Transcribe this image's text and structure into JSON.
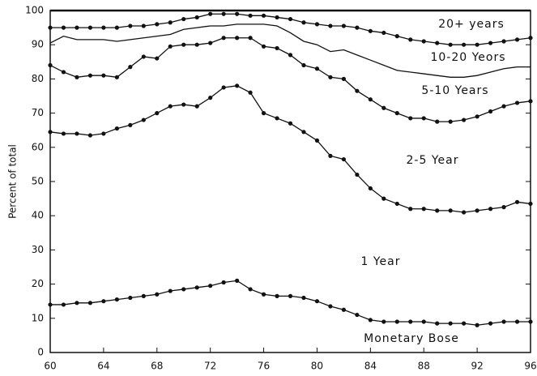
{
  "chart_data": {
    "type": "line",
    "y_label": "Percent of total",
    "x": [
      60,
      61,
      62,
      63,
      64,
      65,
      66,
      67,
      68,
      69,
      70,
      71,
      72,
      73,
      74,
      75,
      76,
      77,
      78,
      79,
      80,
      81,
      82,
      83,
      84,
      85,
      86,
      87,
      88,
      89,
      90,
      91,
      92,
      93,
      94,
      95,
      96
    ],
    "xlim": [
      60,
      96
    ],
    "xticks": [
      60,
      64,
      68,
      72,
      76,
      80,
      84,
      88,
      92,
      96
    ],
    "ylim": [
      0,
      100
    ],
    "yticks": [
      0,
      10,
      20,
      30,
      40,
      50,
      60,
      70,
      80,
      90,
      100
    ],
    "series": [
      {
        "color": "#111111",
        "marker": true,
        "values": [
          14,
          14,
          14.5,
          14.5,
          15,
          15.5,
          16,
          16.5,
          17,
          18,
          18.5,
          19,
          19.5,
          20.5,
          21,
          18.5,
          17,
          16.5,
          16.5,
          16,
          15,
          13.5,
          12.5,
          11,
          9.5,
          9,
          9,
          9,
          9,
          8.5,
          8.5,
          8.5,
          8,
          8.5,
          9,
          9,
          9
        ]
      },
      {
        "color": "#111111",
        "marker": true,
        "values": [
          64.5,
          64,
          64,
          63.5,
          64,
          65.5,
          66.5,
          68,
          70,
          72,
          72.5,
          72,
          74.5,
          77.5,
          78,
          76,
          70,
          68.5,
          67,
          64.5,
          62,
          57.5,
          56.5,
          52,
          48,
          45,
          43.5,
          42,
          42,
          41.5,
          41.5,
          41,
          41.5,
          42,
          42.5,
          44,
          43.5
        ]
      },
      {
        "color": "#111111",
        "marker": true,
        "values": [
          84,
          82,
          80.5,
          81,
          81,
          80.5,
          83.5,
          86.5,
          86,
          89.5,
          90,
          90,
          90.5,
          92,
          92,
          92,
          89.5,
          89,
          87,
          84,
          83,
          80.5,
          80,
          76.5,
          74,
          71.5,
          70,
          68.5,
          68.5,
          67.5,
          67.5,
          68,
          69,
          70.5,
          72,
          73,
          73.5
        ]
      },
      {
        "color": "#111111",
        "marker": false,
        "values": [
          90.5,
          92.5,
          91.5,
          91.5,
          91.5,
          91,
          91.5,
          92,
          92.5,
          93,
          94.5,
          95,
          95.5,
          95.5,
          96,
          96,
          96,
          95.5,
          93.5,
          91,
          90,
          88,
          88.5,
          87,
          85.5,
          84,
          82.5,
          82,
          81.5,
          81,
          80.5,
          80.5,
          81,
          82,
          83,
          83.5,
          83.5
        ]
      },
      {
        "color": "#111111",
        "marker": true,
        "values": [
          95,
          95,
          95,
          95,
          95,
          95,
          95.5,
          95.5,
          96,
          96.5,
          97.5,
          98,
          99,
          99,
          99,
          98.5,
          98.5,
          98,
          97.5,
          96.5,
          96,
          95.5,
          95.5,
          95,
          94,
          93.5,
          92.5,
          91.5,
          91,
          90.5,
          90,
          90,
          90,
          90.5,
          91,
          91.5,
          92
        ]
      }
    ],
    "annotations": [
      "20+ years",
      "10-20 Yeors",
      "5-10 Years",
      "2-5 Year",
      "1 Year",
      "Monetary Bose"
    ]
  }
}
